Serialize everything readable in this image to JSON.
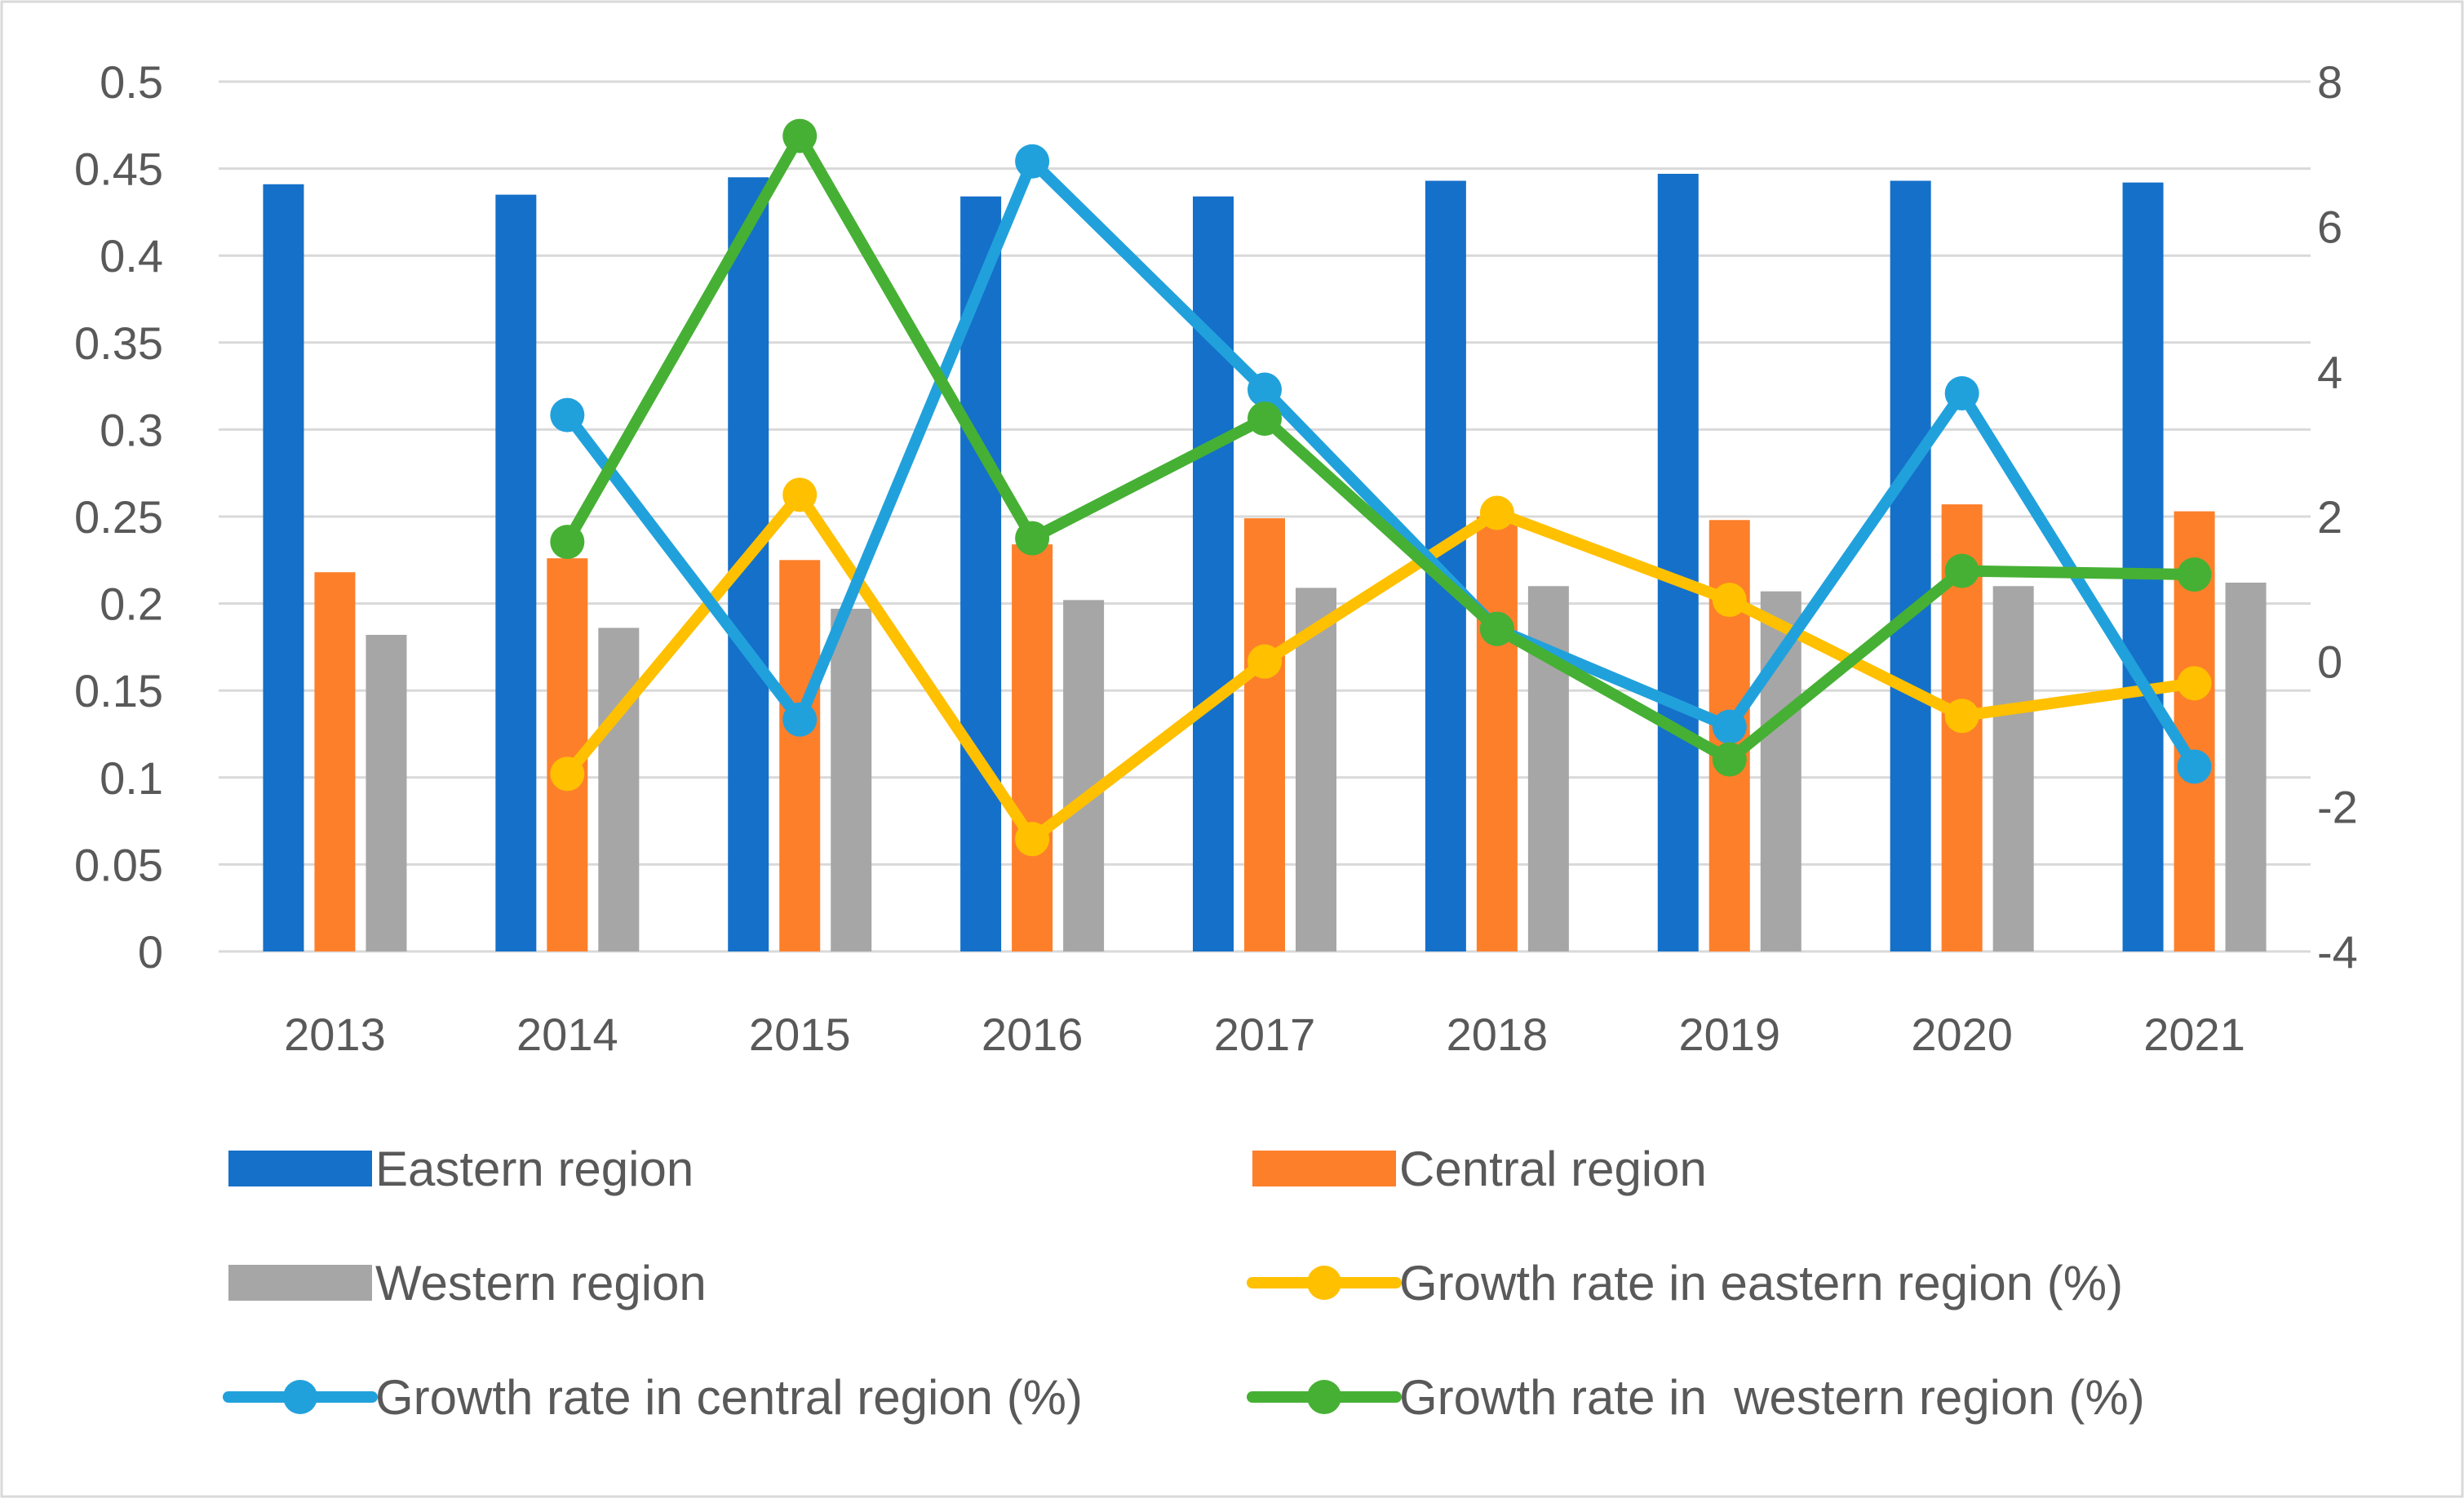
{
  "colors": {
    "eastern_bar": "#1570c9",
    "central_bar": "#fd7f2a",
    "western_bar": "#a6a6a6",
    "eastern_growth": "#ffc000",
    "central_growth": "#21a1dc",
    "western_growth": "#46b034"
  },
  "chart_data": {
    "type": "bar",
    "title": "",
    "categories": [
      "2013",
      "2014",
      "2015",
      "2016",
      "2017",
      "2018",
      "2019",
      "2020",
      "2021"
    ],
    "y_left": {
      "min": 0,
      "max": 0.5,
      "step": 0.05,
      "tick_labels": [
        "0",
        "0.05",
        "0.1",
        "0.15",
        "0.2",
        "0.25",
        "0.3",
        "0.35",
        "0.4",
        "0.45",
        "0.5"
      ]
    },
    "y_right": {
      "min": -4,
      "max": 8,
      "step": 2,
      "tick_labels": [
        "-4",
        "-2",
        "0",
        "2",
        "4",
        "6",
        "8"
      ]
    },
    "grid": true,
    "legend_position": "bottom",
    "bar_series": [
      {
        "name": "Eastern region",
        "color_key": "eastern_bar",
        "values": [
          0.441,
          0.435,
          0.445,
          0.434,
          0.434,
          0.443,
          0.447,
          0.443,
          0.442
        ]
      },
      {
        "name": "Central region",
        "color_key": "central_bar",
        "values": [
          0.218,
          0.226,
          0.225,
          0.234,
          0.249,
          0.25,
          0.248,
          0.257,
          0.253
        ]
      },
      {
        "name": "Western region",
        "color_key": "western_bar",
        "values": [
          0.182,
          0.186,
          0.197,
          0.202,
          0.209,
          0.21,
          0.207,
          0.21,
          0.212
        ]
      }
    ],
    "line_series": [
      {
        "name": "Growth rate in eastern region (%)",
        "color_key": "eastern_growth",
        "values": [
          null,
          -1.55,
          2.3,
          -2.45,
          0.0,
          2.05,
          0.85,
          -0.75,
          -0.3
        ]
      },
      {
        "name": "Growth rate in central region (%)",
        "color_key": "central_growth",
        "values": [
          null,
          3.4,
          -0.8,
          6.9,
          3.75,
          0.45,
          -0.9,
          3.7,
          -1.45
        ]
      },
      {
        "name": "Growth rate in  western region (%)",
        "color_key": "western_growth",
        "values": [
          null,
          1.65,
          7.25,
          1.7,
          3.35,
          0.45,
          -1.35,
          1.25,
          1.2
        ]
      }
    ],
    "legend": [
      {
        "label": "Eastern region",
        "kind": "bar",
        "color_key": "eastern_bar"
      },
      {
        "label": "Central region",
        "kind": "bar",
        "color_key": "central_bar"
      },
      {
        "label": "Western region",
        "kind": "bar",
        "color_key": "western_bar"
      },
      {
        "label": "Growth rate in eastern region (%)",
        "kind": "line",
        "color_key": "eastern_growth"
      },
      {
        "label": "Growth rate in central region (%)",
        "kind": "line",
        "color_key": "central_growth"
      },
      {
        "label": "Growth rate in  western region (%)",
        "kind": "line",
        "color_key": "western_growth"
      }
    ]
  }
}
